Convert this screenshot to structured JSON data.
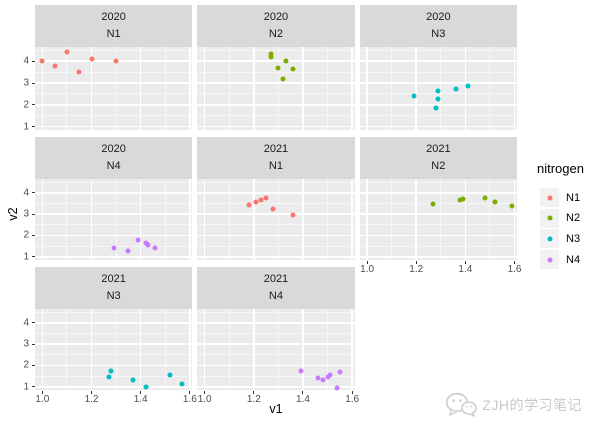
{
  "watermark": {
    "text": "ZJH的学习笔记",
    "icon": "wechat-icon"
  },
  "theme": {
    "panel_bg": "#EBEBEB",
    "strip_bg": "#D9D9D9",
    "grid_color": "#FFFFFF",
    "tick_label_color": "#4D4D4D",
    "axis_title_color": "#000000",
    "legend_key_bg": "#F2F2F2",
    "watermark_color": "#C9C9C9",
    "tick_mark_color": "#333333"
  },
  "chart_data": {
    "type": "scatter",
    "title": "",
    "xlabel": "v1",
    "ylabel": "v2",
    "xlim": [
      0.97,
      1.61
    ],
    "ylim": [
      0.85,
      4.65
    ],
    "x_ticks": [
      {
        "value": 1.0,
        "label": "1.0"
      },
      {
        "value": 1.2,
        "label": "1.2"
      },
      {
        "value": 1.4,
        "label": "1.4"
      },
      {
        "value": 1.6,
        "label": "1.6"
      }
    ],
    "y_ticks": [
      {
        "value": 1,
        "label": "1"
      },
      {
        "value": 2,
        "label": "2"
      },
      {
        "value": 3,
        "label": "3"
      },
      {
        "value": 4,
        "label": "4"
      }
    ],
    "x_minor": [
      1.1,
      1.3,
      1.5
    ],
    "y_minor": [
      1.5,
      2.5,
      3.5,
      4.5
    ],
    "grid": true,
    "legend": {
      "title": "nitrogen",
      "position": "right",
      "entries": [
        {
          "label": "N1",
          "color": "#F8766D"
        },
        {
          "label": "N2",
          "color": "#7CAE00"
        },
        {
          "label": "N3",
          "color": "#00BFC4"
        },
        {
          "label": "N4",
          "color": "#C77CFF"
        }
      ]
    },
    "facets": [
      {
        "strip_top": "2020",
        "strip_bottom": "N1",
        "group": "N1",
        "color": "#F8766D",
        "grid_row": 0,
        "grid_col": 0,
        "points": [
          [
            1.0,
            4.0
          ],
          [
            1.05,
            3.8
          ],
          [
            1.1,
            4.4
          ],
          [
            1.15,
            3.5
          ],
          [
            1.2,
            4.1
          ],
          [
            1.3,
            4.0
          ]
        ]
      },
      {
        "strip_top": "2020",
        "strip_bottom": "N2",
        "group": "N2",
        "color": "#7CAE00",
        "grid_row": 0,
        "grid_col": 1,
        "points": [
          [
            1.27,
            4.35
          ],
          [
            1.27,
            4.2
          ],
          [
            1.3,
            3.7
          ],
          [
            1.33,
            4.0
          ],
          [
            1.32,
            3.2
          ],
          [
            1.36,
            3.65
          ]
        ]
      },
      {
        "strip_top": "2020",
        "strip_bottom": "N3",
        "group": "N3",
        "color": "#00BFC4",
        "grid_row": 0,
        "grid_col": 2,
        "points": [
          [
            1.19,
            2.4
          ],
          [
            1.28,
            1.85
          ],
          [
            1.29,
            2.65
          ],
          [
            1.29,
            2.25
          ],
          [
            1.36,
            2.75
          ],
          [
            1.41,
            2.85
          ]
        ]
      },
      {
        "strip_top": "2020",
        "strip_bottom": "N4",
        "group": "N4",
        "color": "#C77CFF",
        "grid_row": 1,
        "grid_col": 0,
        "points": [
          [
            1.29,
            1.4
          ],
          [
            1.35,
            1.25
          ],
          [
            1.39,
            1.8
          ],
          [
            1.42,
            1.65
          ],
          [
            1.43,
            1.55
          ],
          [
            1.46,
            1.4
          ]
        ]
      },
      {
        "strip_top": "2021",
        "strip_bottom": "N1",
        "group": "N1",
        "color": "#F8766D",
        "grid_row": 1,
        "grid_col": 1,
        "points": [
          [
            1.18,
            3.45
          ],
          [
            1.21,
            3.55
          ],
          [
            1.23,
            3.65
          ],
          [
            1.25,
            3.75
          ],
          [
            1.28,
            3.25
          ],
          [
            1.36,
            2.95
          ]
        ]
      },
      {
        "strip_top": "2021",
        "strip_bottom": "N2",
        "group": "N2",
        "color": "#7CAE00",
        "grid_row": 1,
        "grid_col": 2,
        "points": [
          [
            1.27,
            3.5
          ],
          [
            1.38,
            3.65
          ],
          [
            1.39,
            3.7
          ],
          [
            1.48,
            3.75
          ],
          [
            1.52,
            3.55
          ],
          [
            1.59,
            3.4
          ]
        ]
      },
      {
        "strip_top": "2021",
        "strip_bottom": "N3",
        "group": "N3",
        "color": "#00BFC4",
        "grid_row": 2,
        "grid_col": 0,
        "points": [
          [
            1.27,
            1.45
          ],
          [
            1.28,
            1.75
          ],
          [
            1.37,
            1.3
          ],
          [
            1.42,
            1.0
          ],
          [
            1.52,
            1.55
          ],
          [
            1.57,
            1.15
          ]
        ]
      },
      {
        "strip_top": "2021",
        "strip_bottom": "N4",
        "group": "N4",
        "color": "#C77CFF",
        "grid_row": 2,
        "grid_col": 1,
        "points": [
          [
            1.39,
            1.75
          ],
          [
            1.46,
            1.4
          ],
          [
            1.48,
            1.3
          ],
          [
            1.5,
            1.45
          ],
          [
            1.51,
            1.55
          ],
          [
            1.55,
            1.7
          ],
          [
            1.54,
            0.95
          ]
        ]
      }
    ]
  }
}
